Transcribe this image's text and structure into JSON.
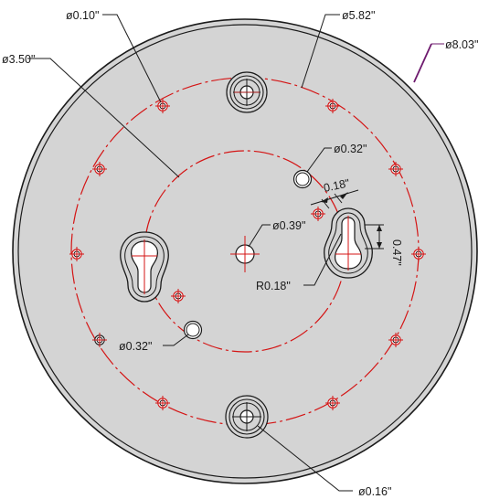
{
  "colors": {
    "plate_fill": "#d4d4d4",
    "outline": "#1a1a1a",
    "center_line": "#d41414",
    "overall_leader": "#6e1a6e",
    "background": "#ffffff"
  },
  "labels": {
    "hole_dia_small": "ø0.10\"",
    "bolt_circle_outer": "ø5.82\"",
    "plate_diameter": "ø8.03\"",
    "bolt_circle_inner": "ø3.50\"",
    "hole_dia_upper": "ø0.32\"",
    "slot_width": "0.18\"",
    "center_hole": "ø0.39\"",
    "slot_length": "0.47\"",
    "slot_radius": "R0.18\"",
    "hole_dia_lower": "ø0.32\"",
    "counterbore_hole": "ø0.16\""
  }
}
